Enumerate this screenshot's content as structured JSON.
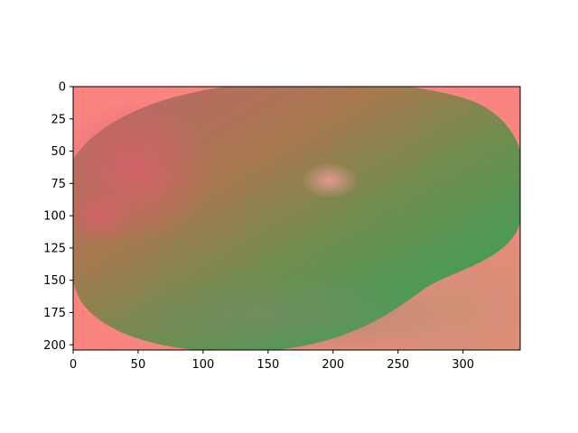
{
  "image": {
    "description_colors": {
      "background_salmon": "#f98480",
      "fruit_olive": "#a8784f",
      "fruit_green": "#4e9a55",
      "fruit_pink": "#d8606c",
      "highlight": "#e99b95",
      "shadow_tan": "#cf9076"
    }
  },
  "axes": {
    "x_ticks": [
      "0",
      "50",
      "100",
      "150",
      "200",
      "250",
      "300"
    ],
    "y_ticks": [
      "0",
      "25",
      "50",
      "75",
      "100",
      "125",
      "150",
      "175",
      "200"
    ],
    "x_range": [
      0,
      344
    ],
    "y_range": [
      204,
      0
    ]
  }
}
